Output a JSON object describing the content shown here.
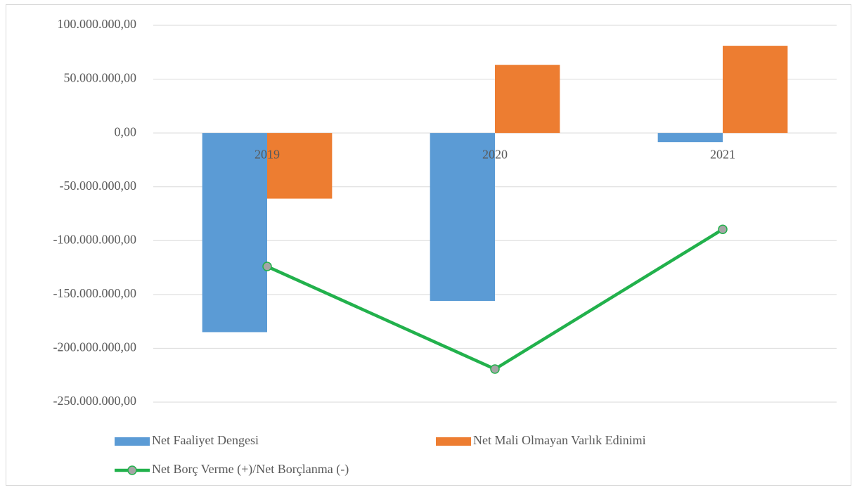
{
  "chart_data": {
    "type": "bar",
    "categories": [
      "2019",
      "2020",
      "2021"
    ],
    "series": [
      {
        "name": "Net Faaliyet Dengesi",
        "color": "#5b9bd5",
        "values": [
          -185000000,
          -156000000,
          -8500000
        ]
      },
      {
        "name": "Net Mali Olmayan Varlık Edinimi",
        "color": "#ed7d31",
        "values": [
          -61000000,
          63300000,
          81000000
        ]
      },
      {
        "name": "Net Borç Verme (+)/Net Borçlanma (-)",
        "type": "line",
        "color": "#22b14c",
        "marker_color": "#a5a5a5",
        "values": [
          -124000000,
          -219300000,
          -89500000
        ]
      }
    ],
    "ylim": [
      -250000000,
      100000000
    ],
    "yticks": [
      {
        "value": -250000000,
        "label": "-250.000.000,00"
      },
      {
        "value": -200000000,
        "label": "-200.000.000,00"
      },
      {
        "value": -150000000,
        "label": "-150.000.000,00"
      },
      {
        "value": -100000000,
        "label": "-100.000.000,00"
      },
      {
        "value": -50000000,
        "label": "-50.000.000,00"
      },
      {
        "value": 0,
        "label": "0,00"
      },
      {
        "value": 50000000,
        "label": "50.000.000,00"
      },
      {
        "value": 100000000,
        "label": "100.000.000,00"
      }
    ],
    "grid": true
  }
}
